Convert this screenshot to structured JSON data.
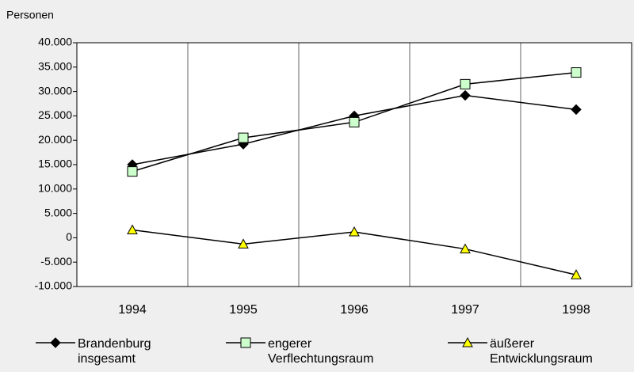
{
  "chart_data": {
    "type": "line",
    "ylabel": "Personen",
    "categories": [
      "1994",
      "1995",
      "1996",
      "1997",
      "1998"
    ],
    "ylim": [
      -10000,
      40000
    ],
    "yticks": [
      {
        "value": -10000,
        "label": "-10.000"
      },
      {
        "value": -5000,
        "label": "-5.000"
      },
      0,
      {
        "value": 5000,
        "label": "5.000"
      },
      {
        "value": 10000,
        "label": "10.000"
      },
      {
        "value": 15000,
        "label": "15.000"
      },
      {
        "value": 20000,
        "label": "20.000"
      },
      {
        "value": 25000,
        "label": "25.000"
      },
      {
        "value": 30000,
        "label": "30.000"
      },
      {
        "value": 35000,
        "label": "35.000"
      },
      {
        "value": 40000,
        "label": "40.000"
      }
    ],
    "series": [
      {
        "name": "Brandenburg insgesamt",
        "color": "#000000",
        "marker": "diamond",
        "values": [
          15000,
          19200,
          25000,
          29200,
          26300
        ]
      },
      {
        "name": "engerer Verflechtungsraum",
        "color": "#ccffcc",
        "marker": "square",
        "values": [
          13600,
          20500,
          23700,
          31500,
          33900
        ]
      },
      {
        "name": "äußerer Entwicklungsraum",
        "color": "#ffff00",
        "marker": "triangle",
        "values": [
          1600,
          -1300,
          1200,
          -2300,
          -7600
        ]
      }
    ]
  }
}
